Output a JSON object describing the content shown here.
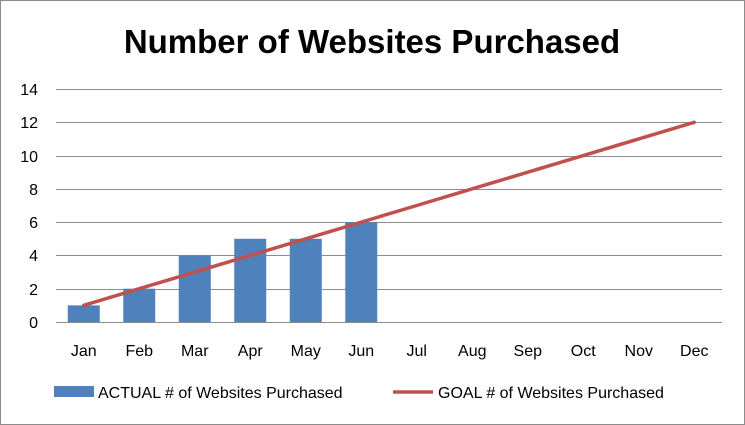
{
  "chart_data": {
    "type": "bar",
    "title": "Number of Websites Purchased",
    "categories": [
      "Jan",
      "Feb",
      "Mar",
      "Apr",
      "May",
      "Jun",
      "Jul",
      "Aug",
      "Sep",
      "Oct",
      "Nov",
      "Dec"
    ],
    "series": [
      {
        "name": "ACTUAL # of Websites Purchased",
        "type": "bar",
        "color": "#4f81bd",
        "values": [
          1,
          2,
          4,
          5,
          5,
          6,
          null,
          null,
          null,
          null,
          null,
          null
        ]
      },
      {
        "name": "GOAL # of Websites Purchased",
        "type": "line",
        "color": "#c0504d",
        "values": [
          1,
          2,
          3,
          4,
          5,
          6,
          7,
          8,
          9,
          10,
          11,
          12
        ]
      }
    ],
    "ylim": [
      0,
      14
    ],
    "yticks": [
      0,
      2,
      4,
      6,
      8,
      10,
      12,
      14
    ],
    "grid": true,
    "legend_position": "bottom",
    "xlabel": "",
    "ylabel": ""
  }
}
